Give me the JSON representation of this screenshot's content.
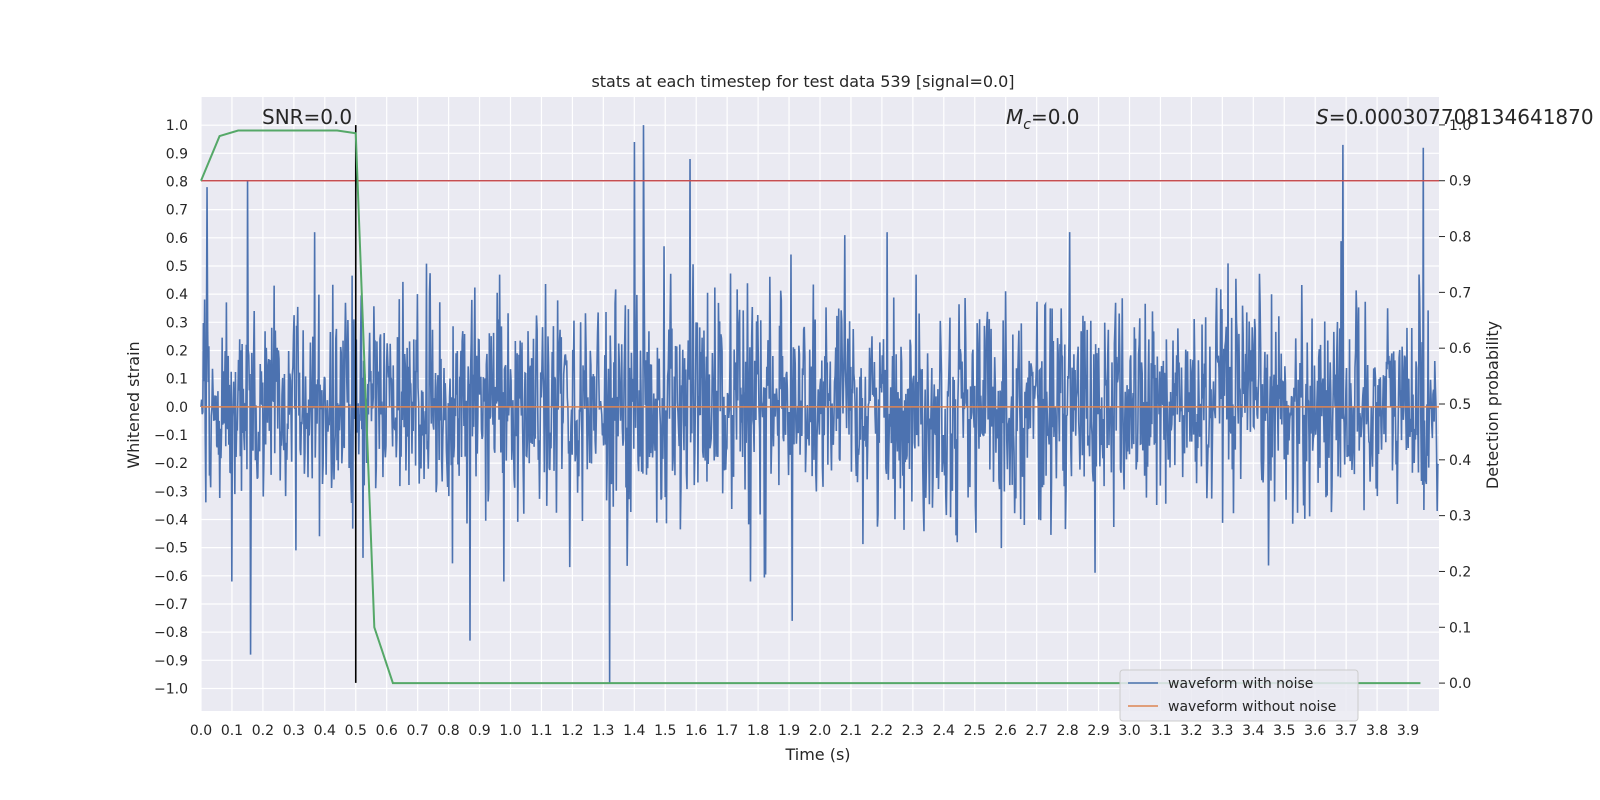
{
  "chart_data": {
    "type": "line",
    "title": "stats at each timestep for test data 539 [signal=0.0]",
    "xlabel": "Time (s)",
    "ylabel_left": "Whitened strain",
    "ylabel_right": "Detection probability",
    "xlim": [
      0.0,
      4.0
    ],
    "ylim_left": [
      -1.08,
      1.1
    ],
    "ylim_right": [
      -0.05,
      1.05
    ],
    "x_ticks": [
      "0.0",
      "0.1",
      "0.2",
      "0.3",
      "0.4",
      "0.5",
      "0.6",
      "0.7",
      "0.8",
      "0.9",
      "1.0",
      "1.1",
      "1.2",
      "1.3",
      "1.4",
      "1.5",
      "1.6",
      "1.7",
      "1.8",
      "1.9",
      "2.0",
      "2.1",
      "2.2",
      "2.3",
      "2.4",
      "2.5",
      "2.6",
      "2.7",
      "2.8",
      "2.9",
      "3.0",
      "3.1",
      "3.2",
      "3.3",
      "3.4",
      "3.5",
      "3.6",
      "3.7",
      "3.8",
      "3.9"
    ],
    "y_ticks_left": [
      "1.0",
      "0.9",
      "0.8",
      "0.7",
      "0.6",
      "0.5",
      "0.4",
      "0.3",
      "0.2",
      "0.1",
      "0.0",
      "−0.1",
      "−0.2",
      "−0.3",
      "−0.4",
      "−0.5",
      "−0.6",
      "−0.7",
      "−0.8",
      "−0.9",
      "−1.0"
    ],
    "y_ticks_right": [
      "1.0",
      "0.9",
      "0.8",
      "0.7",
      "0.6",
      "0.5",
      "0.4",
      "0.3",
      "0.2",
      "0.1",
      "0.0"
    ],
    "annotations": {
      "snr": "SNR=0.0",
      "mc_symbol": "M",
      "mc_sub": "c",
      "mc_value": "=0.0",
      "s_symbol": "S",
      "s_value": "=0.00030770813464187",
      "s_extra": "0"
    },
    "series": [
      {
        "name": "waveform with noise",
        "color": "#4c72b0",
        "samples": 2048,
        "sample_rate_hz": 512,
        "rms_amplitude": 0.15,
        "notable_peaks": [
          {
            "x": 0.02,
            "y": 0.78
          },
          {
            "x": 0.15,
            "y": 0.8
          },
          {
            "x": 0.16,
            "y": -0.88
          },
          {
            "x": 0.87,
            "y": -0.83
          },
          {
            "x": 1.32,
            "y": -0.98
          },
          {
            "x": 1.4,
            "y": 0.94
          },
          {
            "x": 1.43,
            "y": 1.0
          },
          {
            "x": 1.58,
            "y": 0.88
          },
          {
            "x": 1.91,
            "y": -0.76
          },
          {
            "x": 3.69,
            "y": 0.93
          },
          {
            "x": 3.95,
            "y": 0.92
          }
        ]
      },
      {
        "name": "waveform without noise",
        "color": "#dd8452",
        "values_constant": 0.0
      },
      {
        "name": "detection probability",
        "color": "#55a868",
        "axis": "right",
        "x": [
          0.0,
          0.06,
          0.12,
          0.2,
          0.3,
          0.4,
          0.44,
          0.5,
          0.56,
          0.62,
          3.94
        ],
        "y": [
          0.9,
          0.98,
          0.99,
          0.99,
          0.99,
          0.99,
          0.99,
          0.985,
          0.1,
          0.0,
          0.0
        ]
      }
    ],
    "threshold_line": {
      "axis": "right",
      "value": 0.9,
      "color": "#c44e52"
    },
    "marker_line": {
      "x": 0.5,
      "color": "#000000",
      "y_from": -0.98,
      "y_to": 1.0
    },
    "legend": {
      "placement": "lower-right",
      "entries": [
        {
          "label": "waveform with noise",
          "color": "#4c72b0"
        },
        {
          "label": "waveform without noise",
          "color": "#dd8452"
        }
      ]
    },
    "colors": {
      "background": "#eaeaf2",
      "grid": "#ffffff",
      "text": "#262626"
    }
  }
}
